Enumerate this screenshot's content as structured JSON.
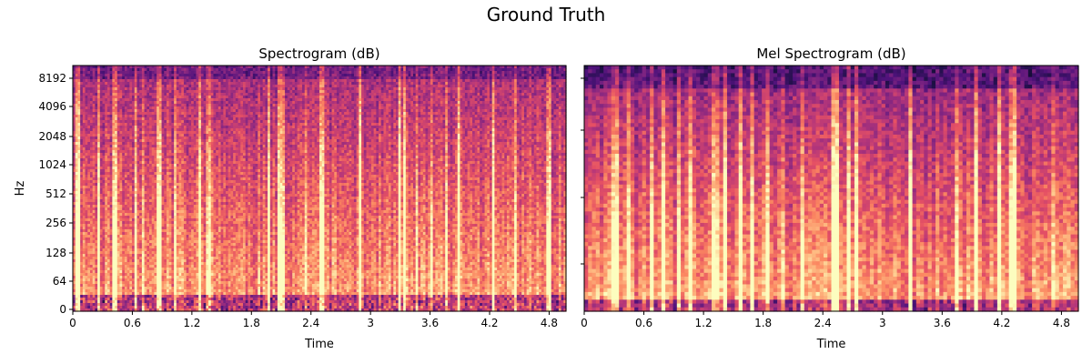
{
  "figure": {
    "title": "Ground Truth"
  },
  "chart_data": [
    {
      "type": "heatmap",
      "title": "Spectrogram (dB)",
      "xlabel": "Time",
      "ylabel": "Hz",
      "x_ticks": [
        "0",
        "0.6",
        "1.2",
        "1.8",
        "2.4",
        "3",
        "3.6",
        "4.2",
        "4.8"
      ],
      "x_tick_values": [
        0,
        0.6,
        1.2,
        1.8,
        2.4,
        3,
        3.6,
        4.2,
        4.8
      ],
      "xlim": [
        0,
        4.97
      ],
      "y_ticks": [
        "0",
        "64",
        "128",
        "256",
        "512",
        "1024",
        "2048",
        "4096",
        "8192"
      ],
      "y_scale": "log2-symmetric",
      "ylim": [
        0,
        11025
      ],
      "colormap": "magma",
      "grid": false
    },
    {
      "type": "heatmap",
      "title": "Mel Spectrogram (dB)",
      "xlabel": "Time",
      "ylabel": "",
      "x_ticks": [
        "0",
        "0.6",
        "1.2",
        "1.8",
        "2.4",
        "3",
        "3.6",
        "4.2",
        "4.8"
      ],
      "x_tick_values": [
        0,
        0.6,
        1.2,
        1.8,
        2.4,
        3,
        3.6,
        4.2,
        4.8
      ],
      "xlim": [
        0,
        4.97
      ],
      "y_ticks": [],
      "y_scale": "mel",
      "colormap": "magma",
      "grid": false
    }
  ]
}
